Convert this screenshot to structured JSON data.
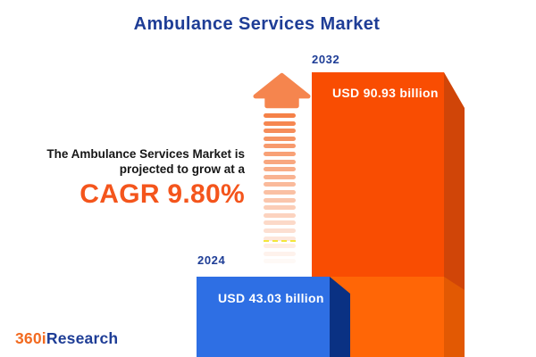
{
  "page": {
    "title": "Ambulance Services Market"
  },
  "tagline": {
    "line1": "The Ambulance Services Market is",
    "line2": "projected to grow at a",
    "cagr": "CAGR 9.80%"
  },
  "chart_data": {
    "type": "bar",
    "title": "Ambulance Services Market",
    "unit": "USD billion",
    "categories": [
      "2024",
      "2032"
    ],
    "values": [
      43.03,
      90.93
    ],
    "cagr_percent": 9.8,
    "legend": "none",
    "bars": [
      {
        "year": "2024",
        "value": 43.03,
        "label": "USD 43.03 billion",
        "color": "#2e6fe4",
        "side_color": "#0a3183"
      },
      {
        "year": "2032",
        "value": 90.93,
        "label": "USD 90.93 billion",
        "color": "#f94d02",
        "color_lower_segment": "#ff6606",
        "side_color": "#d04508"
      }
    ]
  },
  "logo": {
    "prefix": "360i",
    "suffix": "Research"
  },
  "colors": {
    "title_navy": "#1e3d96",
    "accent_orange": "#f4551c",
    "arrow_salmon": "#f58148",
    "text_black": "#161616",
    "background": "#ffffff"
  }
}
